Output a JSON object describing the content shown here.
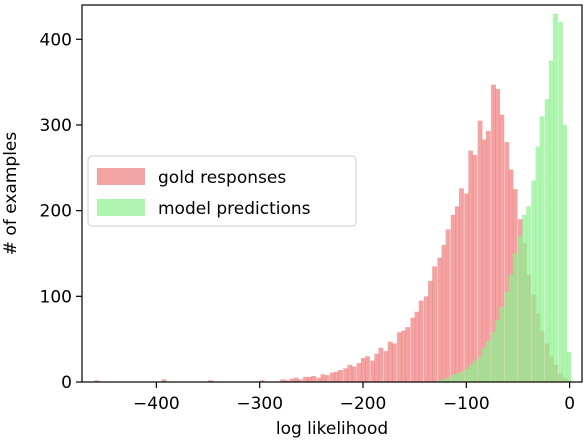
{
  "chart_data": {
    "type": "bar",
    "subtype": "overlapping-histogram",
    "xlabel": "log likelihood",
    "ylabel": "# of examples",
    "xlim": [
      -472,
      12
    ],
    "ylim": [
      0,
      440
    ],
    "xticks": [
      -400,
      -300,
      -200,
      -100,
      0
    ],
    "xtick_labels": [
      "−400",
      "−300",
      "−200",
      "−100",
      "0"
    ],
    "yticks": [
      0,
      100,
      200,
      300,
      400
    ],
    "ytick_labels": [
      "0",
      "100",
      "200",
      "300",
      "400"
    ],
    "grid": false,
    "legend_position": "center-left",
    "bin_width": 4.3,
    "series": [
      {
        "name": "gold responses",
        "color": "#f08080",
        "opacity": 0.72,
        "x": [
          -460,
          -395,
          -350,
          -300,
          -280,
          -276,
          -271,
          -267,
          -263,
          -258,
          -254,
          -250,
          -245,
          -241,
          -237,
          -232,
          -228,
          -224,
          -219,
          -215,
          -211,
          -206,
          -202,
          -198,
          -193,
          -189,
          -185,
          -180,
          -176,
          -172,
          -167,
          -163,
          -159,
          -154,
          -150,
          -146,
          -141,
          -137,
          -133,
          -128,
          -124,
          -120,
          -115,
          -111,
          -107,
          -102,
          -98,
          -94,
          -89,
          -85,
          -81,
          -76,
          -72,
          -68,
          -63,
          -59,
          -55,
          -50,
          -46,
          -42,
          -37,
          -33,
          -29,
          -24,
          -20,
          -16,
          -11,
          -7,
          -3
        ],
        "values": [
          2,
          3,
          2,
          2,
          3,
          2,
          4,
          5,
          3,
          6,
          6,
          7,
          5,
          9,
          8,
          11,
          12,
          14,
          16,
          20,
          18,
          22,
          28,
          30,
          25,
          33,
          40,
          36,
          47,
          45,
          58,
          60,
          64,
          75,
          82,
          95,
          100,
          118,
          135,
          145,
          160,
          178,
          195,
          205,
          226,
          220,
          270,
          265,
          305,
          283,
          293,
          347,
          342,
          312,
          280,
          248,
          225,
          190,
          162,
          125,
          102,
          80,
          60,
          45,
          30,
          20,
          10,
          5,
          2
        ]
      },
      {
        "name": "model predictions",
        "color": "#90f090",
        "opacity": 0.72,
        "x": [
          -128,
          -124,
          -120,
          -115,
          -111,
          -107,
          -102,
          -98,
          -94,
          -89,
          -85,
          -81,
          -76,
          -72,
          -68,
          -63,
          -59,
          -55,
          -50,
          -46,
          -42,
          -37,
          -33,
          -29,
          -24,
          -20,
          -16,
          -11,
          -7,
          -3
        ],
        "values": [
          2,
          3,
          5,
          8,
          10,
          12,
          15,
          20,
          25,
          30,
          40,
          48,
          58,
          72,
          88,
          105,
          125,
          150,
          170,
          195,
          205,
          235,
          275,
          310,
          330,
          375,
          430,
          420,
          300,
          35
        ]
      }
    ]
  }
}
